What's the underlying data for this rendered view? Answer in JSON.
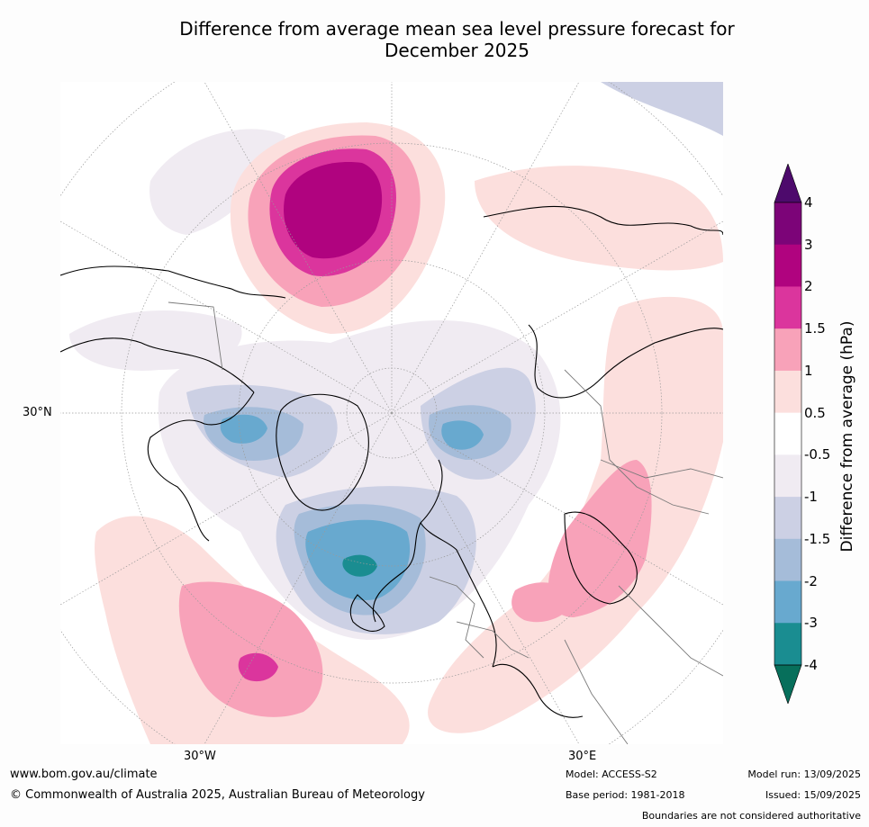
{
  "title": {
    "line1": "Difference from average mean sea level pressure forecast for",
    "line2": "December 2025"
  },
  "map": {
    "projection": "north polar stereographic",
    "labels": {
      "lat30": "30°N",
      "lon_w": "30°W",
      "lon_e": "30°E"
    }
  },
  "colorbar": {
    "title": "Difference from average (hPa)",
    "ticks": [
      "4",
      "3",
      "2",
      "1.5",
      "1",
      "0.5",
      "-0.5",
      "-1",
      "-1.5",
      "-2",
      "-3",
      "-4"
    ],
    "bands": [
      {
        "range": "3 to 4",
        "color": "#7c0478"
      },
      {
        "range": "2 to 3",
        "color": "#b0037f"
      },
      {
        "range": "1.5 to 2",
        "color": "#db359d"
      },
      {
        "range": "1 to 1.5",
        "color": "#f8a2b9"
      },
      {
        "range": "0.5 to 1",
        "color": "#fcdfdd"
      },
      {
        "range": "-0.5 to 0.5",
        "color": "#ffffff"
      },
      {
        "range": "-1 to -0.5",
        "color": "#f0ebf2"
      },
      {
        "range": "-1.5 to -1",
        "color": "#ccd0e4"
      },
      {
        "range": "-2 to -1.5",
        "color": "#a5bcd9"
      },
      {
        "range": "-3 to -2",
        "color": "#68a9cf"
      },
      {
        "range": "-4 to -3",
        "color": "#1a8d91"
      }
    ],
    "over_color": "#4d0a6c",
    "under_color": "#076f5b"
  },
  "footer": {
    "website": "www.bom.gov.au/climate",
    "copyright": "© Commonwealth of Australia 2025, Australian Bureau of Meteorology",
    "model": "Model: ACCESS-S2",
    "base_period": "Base period: 1981-2018",
    "model_run": "Model run: 13/09/2025",
    "issued": "Issued: 15/09/2025",
    "disclaimer": "Boundaries are not considered authoritative"
  }
}
